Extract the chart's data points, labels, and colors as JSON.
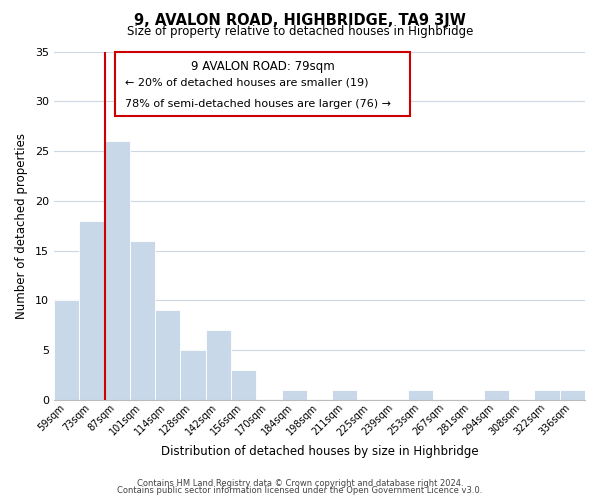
{
  "title": "9, AVALON ROAD, HIGHBRIDGE, TA9 3JW",
  "subtitle": "Size of property relative to detached houses in Highbridge",
  "xlabel": "Distribution of detached houses by size in Highbridge",
  "ylabel": "Number of detached properties",
  "bar_labels": [
    "59sqm",
    "73sqm",
    "87sqm",
    "101sqm",
    "114sqm",
    "128sqm",
    "142sqm",
    "156sqm",
    "170sqm",
    "184sqm",
    "198sqm",
    "211sqm",
    "225sqm",
    "239sqm",
    "253sqm",
    "267sqm",
    "281sqm",
    "294sqm",
    "308sqm",
    "322sqm",
    "336sqm"
  ],
  "bar_values": [
    10,
    18,
    26,
    16,
    9,
    5,
    7,
    3,
    0,
    1,
    0,
    1,
    0,
    0,
    1,
    0,
    0,
    1,
    0,
    1,
    1
  ],
  "bar_color": "#c8d8e8",
  "vline_x": 1.5,
  "vline_color": "#cc0000",
  "ylim": [
    0,
    35
  ],
  "yticks": [
    0,
    5,
    10,
    15,
    20,
    25,
    30,
    35
  ],
  "annotation_title": "9 AVALON ROAD: 79sqm",
  "annotation_line1": "← 20% of detached houses are smaller (19)",
  "annotation_line2": "78% of semi-detached houses are larger (76) →",
  "footer_line1": "Contains HM Land Registry data © Crown copyright and database right 2024.",
  "footer_line2": "Contains public sector information licensed under the Open Government Licence v3.0.",
  "background_color": "#ffffff",
  "grid_color": "#ccd8e4"
}
